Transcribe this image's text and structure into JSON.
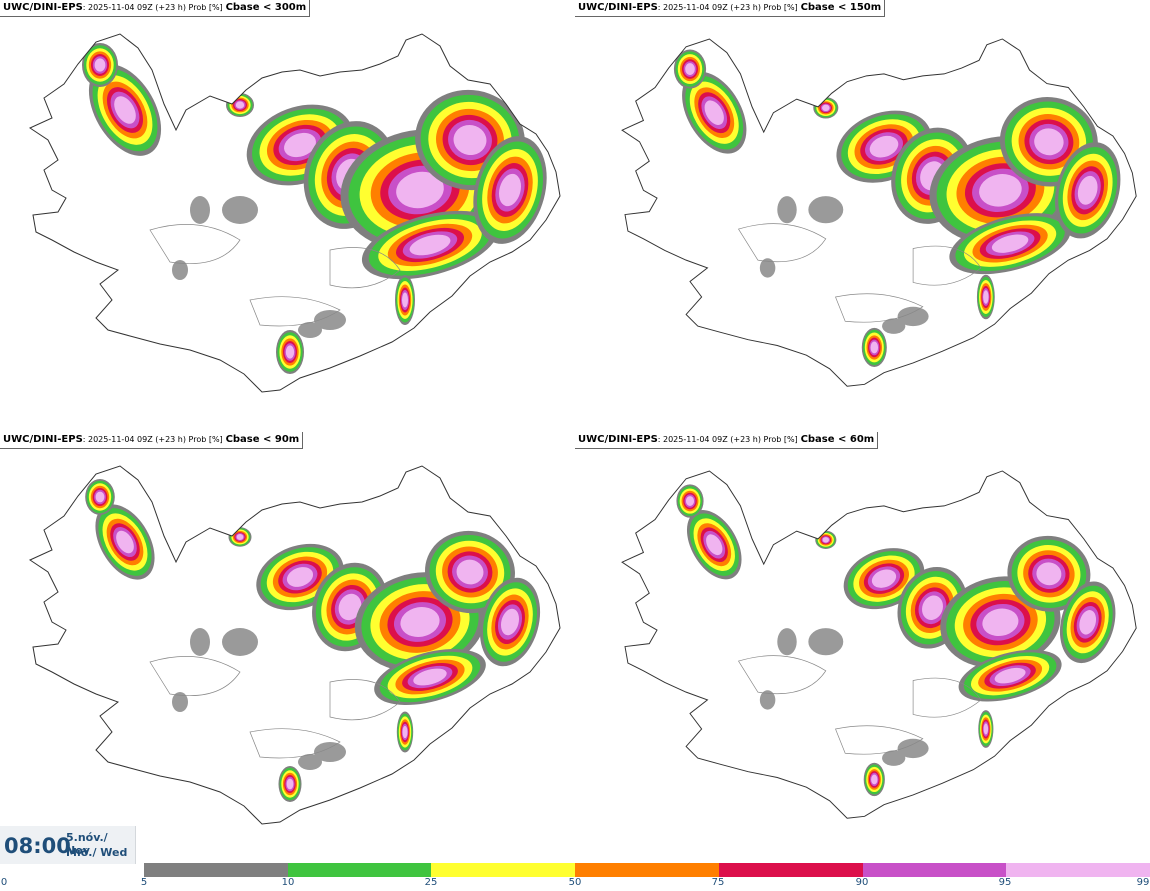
{
  "panels": [
    {
      "model": "UWC/DINI-EPS",
      "meta": ": 2025-11-04 09Z (+23 h) Prob [%]",
      "cbase": "Cbase < 300m"
    },
    {
      "model": "UWC/DINI-EPS",
      "meta": ": 2025-11-04 09Z (+23 h) Prob [%]",
      "cbase": "Cbase < 150m"
    },
    {
      "model": "UWC/DINI-EPS",
      "meta": ": 2025-11-04 09Z (+23 h) Prob [%]",
      "cbase": "Cbase < 90m"
    },
    {
      "model": "UWC/DINI-EPS",
      "meta": ": 2025-11-04 09Z (+23 h) Prob [%]",
      "cbase": "Cbase < 60m"
    }
  ],
  "time": {
    "clock": "08:00",
    "date_line1": "5.nóv./ Nov",
    "date_line2": "Mið./ Wed"
  },
  "legend": {
    "ticks": [
      "0",
      "5",
      "10",
      "25",
      "50",
      "75",
      "90",
      "95",
      "99"
    ],
    "colors": [
      "#b4b4b4",
      "#7f7f7f",
      "#3fc43f",
      "#ffff30",
      "#ff7f00",
      "#dc0f4b",
      "#c850c8",
      "#f0b4f0"
    ]
  }
}
